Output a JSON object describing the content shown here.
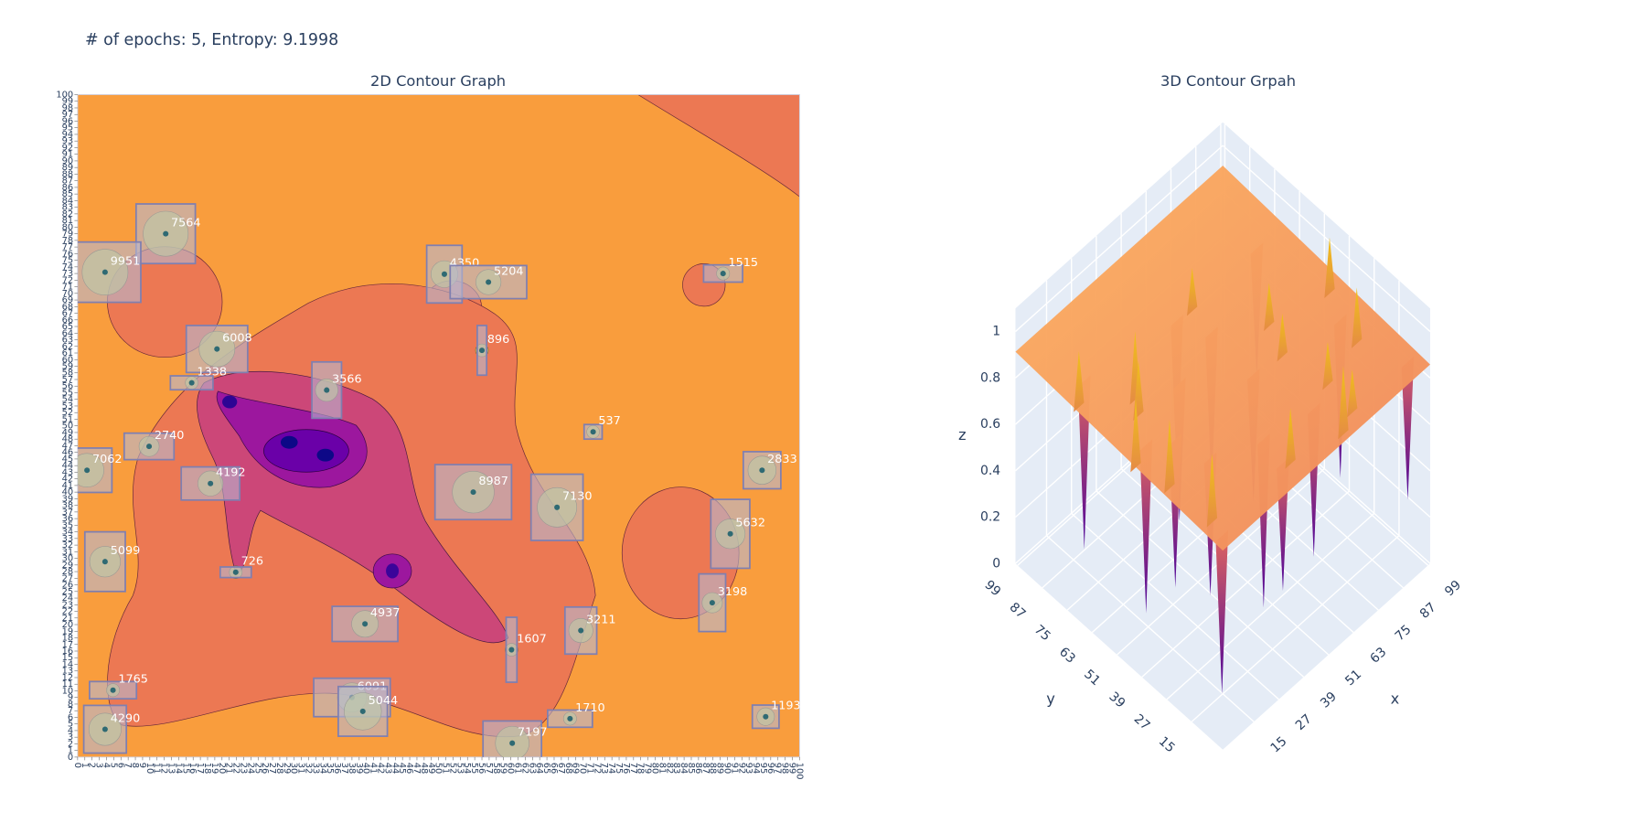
{
  "title": "# of epochs: 5, Entropy: 9.1998",
  "chart_data": [
    {
      "type": "contour2d",
      "title": "2D Contour Graph",
      "xlim": [
        0,
        100
      ],
      "ylim": [
        0,
        100
      ],
      "xticks": [
        0,
        1,
        2,
        3,
        4,
        5,
        6,
        7,
        8,
        9,
        10,
        11,
        12,
        13,
        14,
        15,
        16,
        17,
        18,
        19,
        20,
        21,
        22,
        23,
        24,
        25,
        26,
        27,
        28,
        29,
        30,
        31,
        32,
        33,
        34,
        35,
        36,
        37,
        38,
        39,
        40,
        41,
        42,
        43,
        44,
        45,
        46,
        47,
        48,
        49,
        50,
        51,
        52,
        53,
        54,
        55,
        56,
        57,
        58,
        59,
        60,
        61,
        62,
        63,
        64,
        65,
        66,
        67,
        68,
        69,
        70,
        71,
        72,
        73,
        74,
        75,
        76,
        77,
        78,
        79,
        80,
        81,
        82,
        83,
        84,
        85,
        86,
        87,
        88,
        89,
        90,
        91,
        92,
        93,
        94,
        95,
        96,
        97,
        98,
        99,
        100
      ],
      "yticks": [
        0,
        1,
        2,
        3,
        4,
        5,
        6,
        7,
        8,
        9,
        10,
        11,
        12,
        13,
        14,
        15,
        16,
        17,
        18,
        19,
        20,
        21,
        22,
        23,
        24,
        25,
        26,
        27,
        28,
        29,
        30,
        31,
        32,
        33,
        34,
        35,
        36,
        37,
        38,
        39,
        40,
        41,
        42,
        43,
        44,
        45,
        46,
        47,
        48,
        49,
        50,
        51,
        52,
        53,
        54,
        55,
        56,
        57,
        58,
        59,
        60,
        61,
        62,
        63,
        64,
        65,
        66,
        67,
        68,
        69,
        70,
        71,
        72,
        73,
        74,
        75,
        76,
        77,
        78,
        79,
        80,
        81,
        82,
        83,
        84,
        85,
        86,
        87,
        88,
        89,
        90,
        91,
        92,
        93,
        94,
        95,
        96,
        97,
        98,
        99,
        100
      ],
      "points": [
        {
          "label": "7564",
          "x": 12.2,
          "y": 79.0,
          "width": 8.2,
          "height": 9.0
        },
        {
          "label": "9951",
          "x": 3.8,
          "y": 73.2,
          "width": 9.9,
          "height": 9.1
        },
        {
          "label": "4350",
          "x": 50.8,
          "y": 72.9,
          "width": 4.9,
          "height": 8.7
        },
        {
          "label": "5204",
          "x": 56.9,
          "y": 71.7,
          "width": 10.6,
          "height": 5.0
        },
        {
          "label": "1515",
          "x": 89.4,
          "y": 73.0,
          "width": 5.4,
          "height": 2.6
        },
        {
          "label": "6008",
          "x": 19.3,
          "y": 61.6,
          "width": 8.5,
          "height": 7.1
        },
        {
          "label": "896",
          "x": 56.0,
          "y": 61.4,
          "width": 1.3,
          "height": 7.5
        },
        {
          "label": "1338",
          "x": 15.8,
          "y": 56.5,
          "width": 5.9,
          "height": 2.1
        },
        {
          "label": "3566",
          "x": 34.5,
          "y": 55.4,
          "width": 4.1,
          "height": 8.5
        },
        {
          "label": "537",
          "x": 71.4,
          "y": 49.1,
          "width": 2.5,
          "height": 2.2
        },
        {
          "label": "2740",
          "x": 9.9,
          "y": 46.9,
          "width": 6.9,
          "height": 4.0
        },
        {
          "label": "7062",
          "x": 1.3,
          "y": 43.3,
          "width": 6.9,
          "height": 6.7
        },
        {
          "label": "4192",
          "x": 18.4,
          "y": 41.3,
          "width": 8.1,
          "height": 5.0
        },
        {
          "label": "2833",
          "x": 94.8,
          "y": 43.3,
          "width": 5.2,
          "height": 5.6
        },
        {
          "label": "8987",
          "x": 54.8,
          "y": 40.0,
          "width": 10.6,
          "height": 8.3
        },
        {
          "label": "7130",
          "x": 66.4,
          "y": 37.7,
          "width": 7.2,
          "height": 10.0
        },
        {
          "label": "5632",
          "x": 90.4,
          "y": 33.7,
          "width": 5.4,
          "height": 10.4
        },
        {
          "label": "5099",
          "x": 3.8,
          "y": 29.5,
          "width": 5.6,
          "height": 9.0
        },
        {
          "label": "726",
          "x": 21.9,
          "y": 27.9,
          "width": 4.3,
          "height": 1.6
        },
        {
          "label": "3198",
          "x": 87.9,
          "y": 23.3,
          "width": 3.7,
          "height": 8.7
        },
        {
          "label": "4937",
          "x": 39.8,
          "y": 20.1,
          "width": 9.1,
          "height": 5.3
        },
        {
          "label": "3211",
          "x": 69.7,
          "y": 19.1,
          "width": 4.4,
          "height": 7.1
        },
        {
          "label": "1607",
          "x": 60.1,
          "y": 16.2,
          "width": 1.5,
          "height": 9.8
        },
        {
          "label": "1765",
          "x": 4.9,
          "y": 10.1,
          "width": 6.5,
          "height": 2.6
        },
        {
          "label": "6091",
          "x": 38.0,
          "y": 9.0,
          "width": 10.6,
          "height": 5.8
        },
        {
          "label": "5044",
          "x": 39.5,
          "y": 6.9,
          "width": 6.8,
          "height": 7.5
        },
        {
          "label": "4290",
          "x": 3.8,
          "y": 4.2,
          "width": 5.9,
          "height": 7.2
        },
        {
          "label": "1710",
          "x": 68.2,
          "y": 5.8,
          "width": 6.2,
          "height": 2.6
        },
        {
          "label": "1193",
          "x": 95.3,
          "y": 6.1,
          "width": 3.7,
          "height": 3.5
        },
        {
          "label": "7197",
          "x": 60.2,
          "y": 2.1,
          "width": 8.1,
          "height": 6.7
        }
      ]
    },
    {
      "type": "surface3d",
      "title": "3D Contour Grpah",
      "xlabel": "x",
      "ylabel": "y",
      "zlabel": "z",
      "xlim": [
        0,
        100
      ],
      "ylim": [
        0,
        100
      ],
      "zlim": [
        0,
        1.1
      ],
      "xticks": [
        15,
        27,
        39,
        51,
        63,
        75,
        87,
        99
      ],
      "yticks": [
        15,
        27,
        39,
        51,
        63,
        75,
        87,
        99
      ],
      "zticks": [
        0,
        0.2,
        0.4,
        0.6,
        0.8,
        1
      ]
    }
  ]
}
